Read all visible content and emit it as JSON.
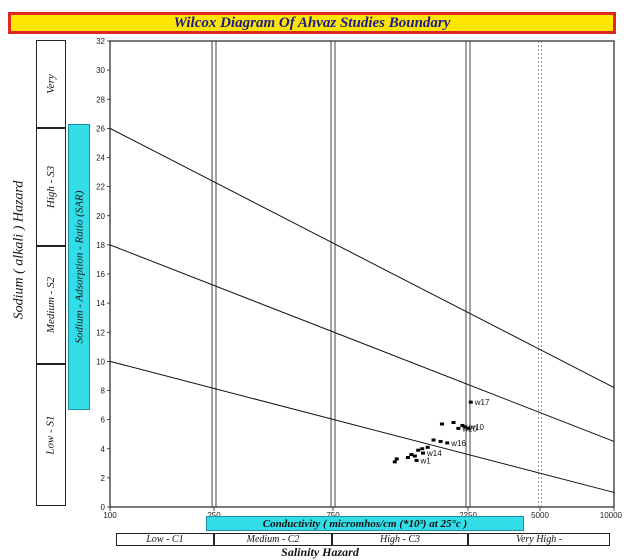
{
  "title": "Wilcox Diagram Of Ahvaz Studies Boundary",
  "sodium_hazard_label": "Sodium ( alkali ) Hazard",
  "sar_axis_label": "Sodium - Adsorption - Ratio (SAR)",
  "sodium_classes": [
    "Very",
    "High - S3",
    "Medium - S2",
    "Low - S1"
  ],
  "conductivity_label": "Conductivity ( micromhos/cm (*10³) at 25°c )",
  "salinity_classes": [
    "Low - C1",
    "Medium - C2",
    "High - C3",
    "Very High -"
  ],
  "salinity_hazard_label": "Salinity  Hazard",
  "chart_data": {
    "type": "scatter",
    "title": "Wilcox Diagram Of Ahvaz Studies Boundary",
    "xlabel": "Conductivity ( micromhos/cm (*10³) at 25°c )",
    "ylabel": "Sodium - Adsorption - Ratio (SAR)",
    "ylim": [
      0,
      32
    ],
    "xlim": [
      100,
      10000
    ],
    "x_ticks": [
      "100",
      "250",
      "750",
      "2250",
      "5000",
      "10000"
    ],
    "y_ticks": [
      0,
      2,
      4,
      6,
      8,
      10,
      12,
      14,
      16,
      18,
      20,
      22,
      24,
      26,
      28,
      30,
      32
    ],
    "class_boundaries_conductivity": [
      250,
      750,
      2250,
      5000
    ],
    "boundary_lines": [
      {
        "start_sar": 26,
        "end_sar": 8.2
      },
      {
        "start_sar": 18,
        "end_sar": 4.5
      },
      {
        "start_sar": 10,
        "end_sar": 1
      }
    ],
    "grid": false,
    "points": [
      {
        "x": 2320,
        "y": 7.2,
        "label": "w17"
      },
      {
        "x": 1820,
        "y": 5.7,
        "label": ""
      },
      {
        "x": 2000,
        "y": 5.8,
        "label": ""
      },
      {
        "x": 2150,
        "y": 5.6,
        "label": ""
      },
      {
        "x": 2250,
        "y": 5.4,
        "label": ""
      },
      {
        "x": 2200,
        "y": 5.5,
        "label": "w10"
      },
      {
        "x": 2080,
        "y": 5.4,
        "label": "w20"
      },
      {
        "x": 1700,
        "y": 4.6,
        "label": ""
      },
      {
        "x": 1800,
        "y": 4.5,
        "label": ""
      },
      {
        "x": 1900,
        "y": 4.4,
        "label": "w16"
      },
      {
        "x": 1550,
        "y": 4.0,
        "label": ""
      },
      {
        "x": 1620,
        "y": 4.1,
        "label": ""
      },
      {
        "x": 1500,
        "y": 3.9,
        "label": ""
      },
      {
        "x": 1560,
        "y": 3.7,
        "label": "w14"
      },
      {
        "x": 1460,
        "y": 3.5,
        "label": ""
      },
      {
        "x": 1420,
        "y": 3.6,
        "label": ""
      },
      {
        "x": 1380,
        "y": 3.4,
        "label": ""
      },
      {
        "x": 1260,
        "y": 3.3,
        "label": ""
      },
      {
        "x": 1240,
        "y": 3.1,
        "label": ""
      },
      {
        "x": 1480,
        "y": 3.2,
        "label": "w1"
      }
    ]
  }
}
